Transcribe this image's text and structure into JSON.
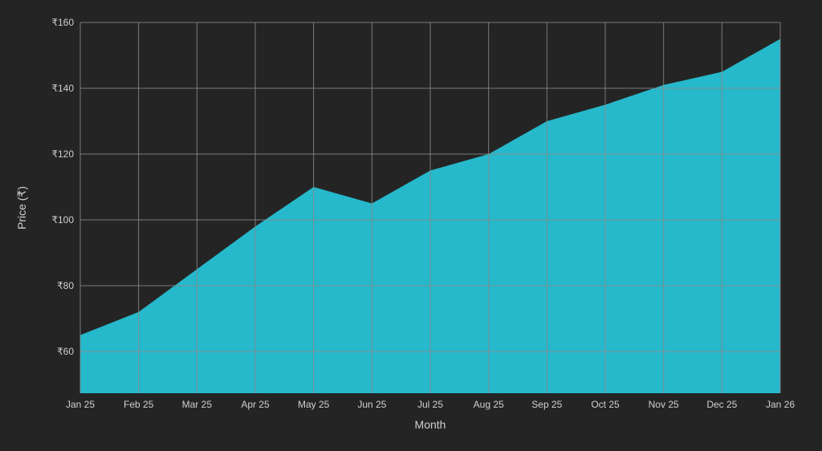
{
  "chart_data": {
    "type": "area",
    "title": "",
    "xlabel": "Month",
    "ylabel": "Price (₹)",
    "categories": [
      "Jan 25",
      "Feb 25",
      "Mar 25",
      "Apr 25",
      "May 25",
      "Jun 25",
      "Jul 25",
      "Aug 25",
      "Sep 25",
      "Oct 25",
      "Nov 25",
      "Dec 25",
      "Jan 26"
    ],
    "values": [
      65,
      72,
      85,
      98,
      110,
      105,
      115,
      120,
      130,
      135,
      141,
      145,
      155
    ],
    "ylim": [
      60,
      160
    ],
    "y_ticks": [
      60,
      80,
      100,
      120,
      140,
      160
    ],
    "y_tick_labels": [
      "₹60",
      "₹80",
      "₹100",
      "₹120",
      "₹140",
      "₹160"
    ],
    "grid": true,
    "legend": "none",
    "colors": {
      "area": "#26b8cb",
      "grid": "#8a8a8a",
      "text": "#cfcfcf",
      "background": "#242424"
    }
  }
}
